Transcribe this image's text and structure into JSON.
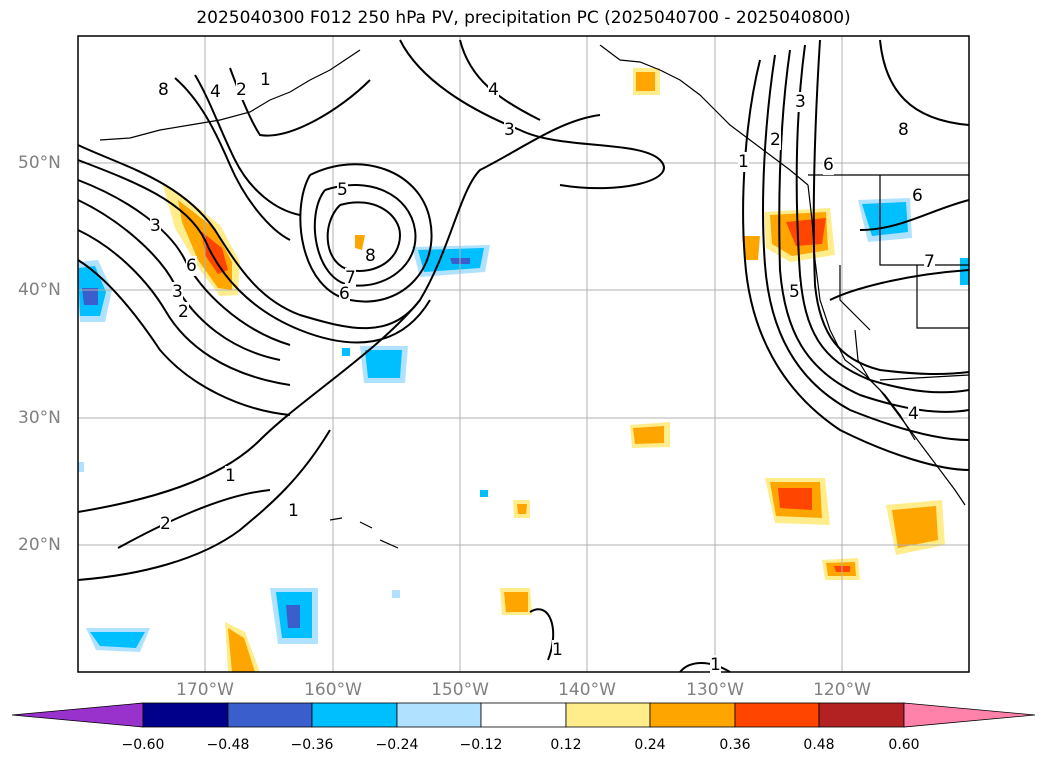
{
  "title": "2025040300 F012 250 hPa PV, precipitation PC (2025040700 - 2025040800)",
  "lat_labels": [
    "50°N",
    "40°N",
    "30°N",
    "20°N"
  ],
  "lon_labels": [
    "170°W",
    "160°W",
    "150°W",
    "140°W",
    "130°W",
    "120°W"
  ],
  "colorbar": {
    "tick_labels": [
      "−0.60",
      "−0.48",
      "−0.36",
      "−0.24",
      "−0.12",
      "0.12",
      "0.24",
      "0.36",
      "0.48",
      "0.60"
    ],
    "colors": [
      "#9932cc",
      "#00008b",
      "#3a5fcd",
      "#00bfff",
      "#b0e2ff",
      "#ffffff",
      "#ffec8b",
      "#ffa500",
      "#ff4500",
      "#b22222",
      "#ff82ab"
    ]
  },
  "contour_labels": [
    "8",
    "4",
    "2",
    "1",
    "4",
    "3",
    "5",
    "8",
    "7",
    "6",
    "3",
    "6",
    "3",
    "2",
    "1",
    "2",
    "1",
    "1",
    "1",
    "3",
    "2",
    "1",
    "6",
    "8",
    "6",
    "7",
    "5",
    "4"
  ]
}
